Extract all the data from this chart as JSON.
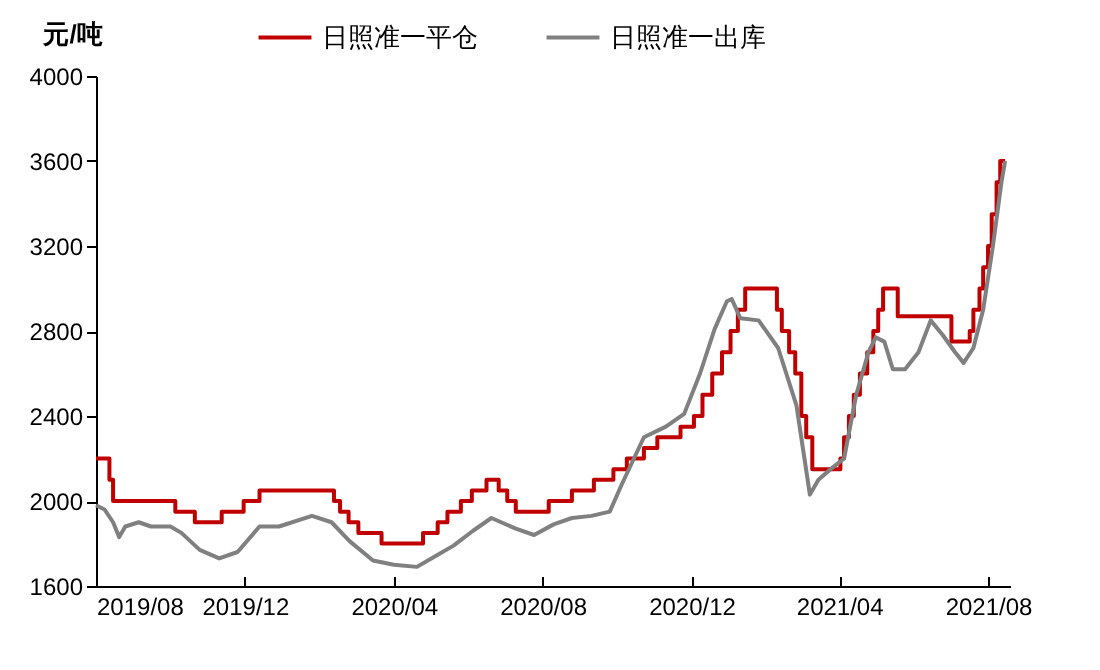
{
  "chart_data": {
    "type": "line",
    "ylabel": "元/吨",
    "legend": "top",
    "grid": false,
    "xlim": [
      "2019-08-01",
      "2021-08-19"
    ],
    "xticks": [
      {
        "value": "2019-08-01",
        "label": "2019/08"
      },
      {
        "value": "2019-12-01",
        "label": "2019/12"
      },
      {
        "value": "2020-04-01",
        "label": "2020/04"
      },
      {
        "value": "2020-08-01",
        "label": "2020/08"
      },
      {
        "value": "2020-12-01",
        "label": "2020/12"
      },
      {
        "value": "2021-04-01",
        "label": "2021/04"
      },
      {
        "value": "2021-08-01",
        "label": "2021/08"
      }
    ],
    "ylim": [
      1600,
      4000
    ],
    "yticks": [
      1600,
      2000,
      2400,
      2800,
      3200,
      3600,
      4000
    ],
    "series": [
      {
        "name": "日照准一平仓",
        "color": "#c00000",
        "type": "step",
        "x": [
          "2019-08-01",
          "2019-08-12",
          "2019-08-15",
          "2019-10-05",
          "2019-10-21",
          "2019-11-12",
          "2019-11-30",
          "2019-12-13",
          "2020-02-12",
          "2020-02-17",
          "2020-02-24",
          "2020-03-03",
          "2020-03-22",
          "2020-04-25",
          "2020-05-07",
          "2020-05-15",
          "2020-05-26",
          "2020-06-04",
          "2020-06-16",
          "2020-06-26",
          "2020-07-03",
          "2020-07-10",
          "2020-08-06",
          "2020-08-25",
          "2020-09-12",
          "2020-09-28",
          "2020-10-09",
          "2020-10-23",
          "2020-11-03",
          "2020-11-22",
          "2020-12-03",
          "2020-12-10",
          "2020-12-18",
          "2020-12-26",
          "2021-01-02",
          "2021-01-08",
          "2021-01-14",
          "2021-02-09",
          "2021-02-13",
          "2021-02-19",
          "2021-02-24",
          "2021-03-01",
          "2021-03-05",
          "2021-03-10",
          "2021-04-02",
          "2021-04-05",
          "2021-04-09",
          "2021-04-13",
          "2021-04-18",
          "2021-04-24",
          "2021-04-29",
          "2021-05-03",
          "2021-05-07",
          "2021-05-19",
          "2021-07-02",
          "2021-07-17",
          "2021-07-20",
          "2021-07-25",
          "2021-07-28",
          "2021-08-01",
          "2021-08-04",
          "2021-08-08",
          "2021-08-11",
          "2021-08-14",
          "2021-08-15"
        ],
        "values": [
          2200,
          2100,
          2000,
          1950,
          1900,
          1950,
          2000,
          2050,
          2000,
          1950,
          1900,
          1850,
          1800,
          1850,
          1900,
          1950,
          2000,
          2050,
          2100,
          2050,
          2000,
          1950,
          2000,
          2050,
          2100,
          2150,
          2200,
          2250,
          2300,
          2350,
          2400,
          2500,
          2600,
          2700,
          2800,
          2900,
          3000,
          2900,
          2800,
          2700,
          2600,
          2400,
          2300,
          2150,
          2200,
          2300,
          2400,
          2500,
          2600,
          2700,
          2800,
          2900,
          3000,
          2870,
          2750,
          2800,
          2900,
          3000,
          3100,
          3200,
          3350,
          3500,
          3600,
          3600,
          3600
        ]
      },
      {
        "name": "日照准一出库",
        "color": "#808080",
        "x": [
          "2019-08-01",
          "2019-08-08",
          "2019-08-15",
          "2019-08-20",
          "2019-08-25",
          "2019-09-05",
          "2019-09-15",
          "2019-10-01",
          "2019-10-10",
          "2019-10-25",
          "2019-11-10",
          "2019-11-25",
          "2019-12-13",
          "2019-12-29",
          "2020-01-25",
          "2020-02-10",
          "2020-02-25",
          "2020-03-15",
          "2020-04-01",
          "2020-04-20",
          "2020-05-05",
          "2020-05-20",
          "2020-06-05",
          "2020-06-20",
          "2020-07-10",
          "2020-07-25",
          "2020-08-10",
          "2020-08-25",
          "2020-09-10",
          "2020-09-25",
          "2020-10-05",
          "2020-10-23",
          "2020-11-10",
          "2020-11-25",
          "2020-12-08",
          "2020-12-20",
          "2020-12-30",
          "2021-01-03",
          "2021-01-10",
          "2021-01-25",
          "2021-02-10",
          "2021-02-25",
          "2021-03-08",
          "2021-03-15",
          "2021-03-25",
          "2021-04-05",
          "2021-04-15",
          "2021-04-25",
          "2021-05-01",
          "2021-05-08",
          "2021-05-15",
          "2021-05-25",
          "2021-06-05",
          "2021-06-15",
          "2021-06-25",
          "2021-07-05",
          "2021-07-12",
          "2021-07-20",
          "2021-07-28",
          "2021-08-05",
          "2021-08-12",
          "2021-08-15"
        ],
        "values": [
          1980,
          1960,
          1900,
          1830,
          1880,
          1900,
          1880,
          1880,
          1850,
          1770,
          1730,
          1760,
          1880,
          1880,
          1930,
          1900,
          1810,
          1720,
          1700,
          1690,
          1740,
          1790,
          1860,
          1920,
          1870,
          1840,
          1890,
          1920,
          1930,
          1950,
          2080,
          2300,
          2350,
          2410,
          2600,
          2810,
          2940,
          2950,
          2860,
          2850,
          2720,
          2450,
          2030,
          2100,
          2150,
          2200,
          2500,
          2700,
          2770,
          2750,
          2620,
          2620,
          2700,
          2850,
          2780,
          2700,
          2650,
          2720,
          2900,
          3200,
          3500,
          3600
        ]
      }
    ]
  }
}
